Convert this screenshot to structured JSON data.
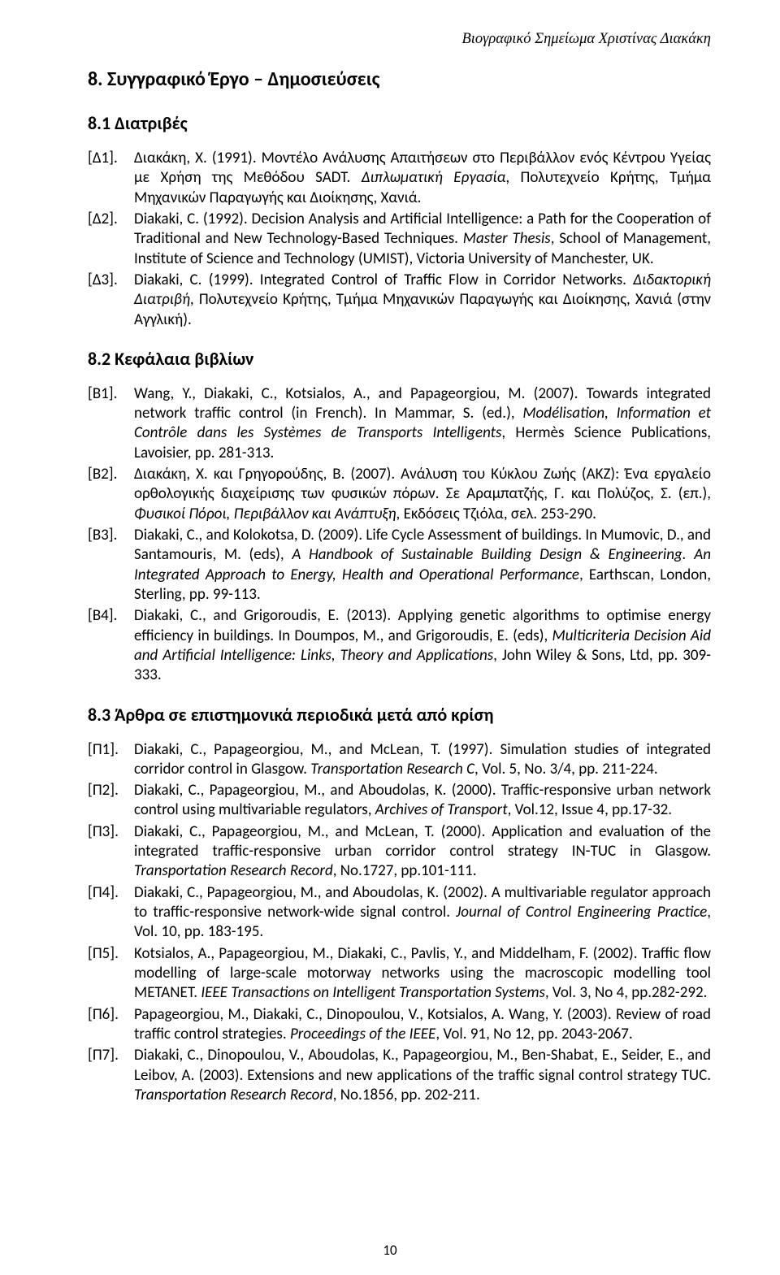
{
  "running_header": "Βιογραφικό Σημείωμα Χριστίνας Διακάκη",
  "section8_title": "8. Συγγραφικό Έργο – Δημοσιεύσεις",
  "s81_title": "8.1 Διατριβές",
  "d1_key": "[Δ1].",
  "d1_body": "Διακάκη, Χ. (1991). Μοντέλο Ανάλυσης Απαιτήσεων στο Περιβάλλον ενός Κέντρου Υγείας με Χρήση της Μεθόδου SADT. <span class=\"italic\">Διπλωματική Εργασία</span>, Πολυτεχνείο Κρήτης, Τμήμα Μηχανικών Παραγωγής και Διοίκησης, Χανιά.",
  "d2_key": "[Δ2].",
  "d2_body": "Diakaki, C. (1992). Decision Analysis and Artificial Intelligence: a Path for the Cooperation of Traditional and New Technology-Based Techniques. <span class=\"italic\">Master Thesis</span>, School of Management, Institute of Science and Technology (UMIST), Victoria University of Manchester, UK.",
  "d3_key": "[Δ3].",
  "d3_body": "Diakaki, C. (1999). Integrated Control of Traffic Flow in Corridor Networks. <span class=\"italic\">Διδακτορική Διατριβή</span>, Πολυτεχνείο Κρήτης, Τμήμα Μηχανικών Παραγωγής και Διοίκησης, Χανιά (στην Αγγλική).",
  "s82_title": "8.2 Κεφάλαια βιβλίων",
  "b1_key": "[B1].",
  "b1_body": "Wang, Y., Diakaki, C., Kotsialos, A., and Papageorgiou, M. (2007). Towards integrated network traffic control (in French). In Mammar, S. (ed.), <span class=\"italic\">Modélisation, Information et Contrôle dans les Systèmes de Transports Intelligents</span>, Hermès Science Publications, Lavoisier, pp. 281-313.",
  "b2_key": "[B2].",
  "b2_body": "Διακάκη, Χ. και Γρηγορούδης, Β. (2007). Ανάλυση του Κύκλου Ζωής (ΑΚΖ): Ένα εργαλείο ορθολογικής διαχείρισης των φυσικών πόρων. Σε Αραμπατζής, Γ. και Πολύζος, Σ. (επ.), <span class=\"italic\">Φυσικοί Πόροι, Περιβάλλον και Ανάπτυξη</span>, Εκδόσεις Τζιόλα, σελ. 253-290.",
  "b3_key": "[B3].",
  "b3_body": "Diakaki, C., and Kolokotsa, D. (2009). Life Cycle Assessment of buildings. In Mumovic, D., and Santamouris, M. (eds), <span class=\"italic\">A Handbook of Sustainable Building Design &amp; Engineering. An Integrated Approach to Energy, Health and Operational Performance</span>, Earthscan, London, Sterling, pp. 99-113.",
  "b4_key": "[B4].",
  "b4_body": "Diakaki, C., and Grigoroudis, E. (2013). Applying genetic algorithms to optimise energy efficiency in buildings. In Doumpos, M., and Grigoroudis, E. (eds), <span class=\"italic\">Multicriteria Decision Aid and Artificial Intelligence: Links, Theory and Applications</span>, John Wiley &amp; Sons, Ltd, pp. 309-333.",
  "s83_title": "8.3 Άρθρα σε επιστημονικά περιοδικά μετά από κρίση",
  "p1_key": "[Π1].",
  "p1_body": "Diakaki, C., Papageorgiou, M., and McLean, T. (1997). Simulation studies of integrated corridor control in Glasgow. <span class=\"italic\">Transportation Research C</span>, Vol. 5, No. 3/4, pp. 211-224.",
  "p2_key": "[Π2].",
  "p2_body": "Diakaki, C., Papageorgiou, M., and Aboudolas, K. (2000). Traffic-responsive urban network control using multivariable regulators, <span class=\"italic\">Archives of Transport</span>, Vol.12, Issue 4, pp.17-32.",
  "p3_key": "[Π3].",
  "p3_body": "Diakaki, C., Papageorgiou, M., and McLean, T. (2000). Application and evaluation of the integrated traffic-responsive urban corridor control strategy IN-TUC in Glasgow. <span class=\"italic\">Transportation Research Record</span>, No.1727, pp.101-111.",
  "p4_key": "[Π4].",
  "p4_body": "Diakaki, C., Papageorgiou, M., and Aboudolas, K. (2002). A multivariable regulator approach to traffic-responsive network-wide signal control. <span class=\"italic\">Journal of Control Engineering Practice</span>, Vol. 10, pp. 183-195.",
  "p5_key": "[Π5].",
  "p5_body": "Kotsialos, A., Papageorgiou, M., Diakaki, C., Pavlis, Y., and Middelham, F. (2002). Traffic flow modelling of large-scale motorway networks using the macroscopic modelling tool METANET. <span class=\"italic\">IEEE Transactions on Intelligent Transportation Systems</span>, Vol. 3, No 4, pp.282-292.",
  "p6_key": "[Π6].",
  "p6_body": "Papageorgiou, M., Diakaki, C., Dinopoulou, V., Kotsialos, A. Wang, Y. (2003). Review of road traffic control strategies. <span class=\"italic\">Proceedings of the IEEE</span>, Vol. 91, No 12, pp. 2043-2067.",
  "p7_key": "[Π7].",
  "p7_body": "Diakaki, C., Dinopoulou, V., Aboudolas, K., Papageorgiou, M., Ben-Shabat, E., Seider, E., and Leibov, A. (2003). Extensions and new applications of the traffic signal control strategy TUC. <span class=\"italic\">Transportation Research Record</span>, No.1856, pp. 202-211.",
  "page_number": "10"
}
